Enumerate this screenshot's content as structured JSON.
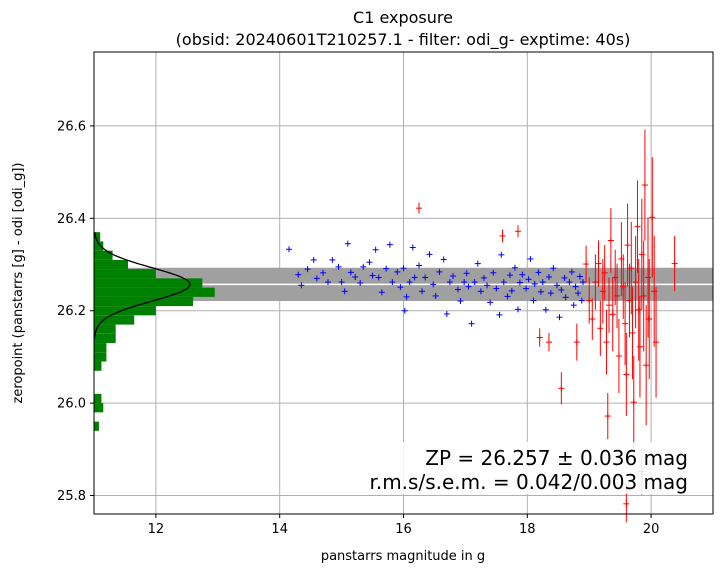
{
  "chart_data": {
    "type": "scatter",
    "title_line1": "C1 exposure",
    "title_line2": "(obsid: 20240601T210257.1 - filter: odi_g- exptime: 40s)",
    "xlabel": "panstarrs magnitude in g",
    "ylabel": "zeropoint (panstarrs [g] - odi [odi_g])",
    "xlim": [
      11.0,
      21.0
    ],
    "ylim": [
      25.76,
      26.76
    ],
    "xticks": [
      12,
      14,
      16,
      18,
      20
    ],
    "yticks": [
      25.8,
      26.0,
      26.2,
      26.4,
      26.6
    ],
    "xtick_labels": [
      "12",
      "14",
      "16",
      "18",
      "20"
    ],
    "ytick_labels": [
      "25.8",
      "26.0",
      "26.2",
      "26.4",
      "26.6"
    ],
    "grid": true,
    "zeropoint": 26.257,
    "zp_band": [
      26.221,
      26.293
    ],
    "annotation_line1": "ZP = 26.257 ± 0.036 mag",
    "annotation_line2": "r.m.s/s.e.m. = 0.042/0.003 mag",
    "colors": {
      "good": "#0000ff",
      "rejected": "#ff0000",
      "band": "#a0a0a0",
      "zp_line": "#ffffff",
      "hist": "#008000",
      "gauss": "#000000",
      "grid": "#b0b0b0"
    },
    "series": [
      {
        "marker": "+",
        "color": "#0000ff",
        "points": [
          [
            14.15,
            26.333
          ],
          [
            14.3,
            26.278
          ],
          [
            14.35,
            26.255
          ],
          [
            14.45,
            26.29
          ],
          [
            14.55,
            26.31
          ],
          [
            14.6,
            26.27
          ],
          [
            14.7,
            26.282
          ],
          [
            14.78,
            26.262
          ],
          [
            14.85,
            26.31
          ],
          [
            14.95,
            26.295
          ],
          [
            15.0,
            26.262
          ],
          [
            15.05,
            26.242
          ],
          [
            15.1,
            26.345
          ],
          [
            15.15,
            26.283
          ],
          [
            15.22,
            26.273
          ],
          [
            15.3,
            26.26
          ],
          [
            15.35,
            26.295
          ],
          [
            15.45,
            26.305
          ],
          [
            15.5,
            26.276
          ],
          [
            15.55,
            26.332
          ],
          [
            15.6,
            26.272
          ],
          [
            15.65,
            26.24
          ],
          [
            15.72,
            26.291
          ],
          [
            15.78,
            26.343
          ],
          [
            15.82,
            26.262
          ],
          [
            15.9,
            26.284
          ],
          [
            15.95,
            26.251
          ],
          [
            16.0,
            26.292
          ],
          [
            16.02,
            26.2
          ],
          [
            16.05,
            26.23
          ],
          [
            16.1,
            26.262
          ],
          [
            16.15,
            26.337
          ],
          [
            16.18,
            26.272
          ],
          [
            16.25,
            26.298
          ],
          [
            16.3,
            26.242
          ],
          [
            16.35,
            26.272
          ],
          [
            16.42,
            26.322
          ],
          [
            16.48,
            26.257
          ],
          [
            16.52,
            26.232
          ],
          [
            16.58,
            26.284
          ],
          [
            16.65,
            26.311
          ],
          [
            16.7,
            26.193
          ],
          [
            16.75,
            26.262
          ],
          [
            16.8,
            26.275
          ],
          [
            16.88,
            26.246
          ],
          [
            16.92,
            26.221
          ],
          [
            16.98,
            26.262
          ],
          [
            17.02,
            26.281
          ],
          [
            17.05,
            26.252
          ],
          [
            17.1,
            26.172
          ],
          [
            17.15,
            26.262
          ],
          [
            17.2,
            26.302
          ],
          [
            17.25,
            26.242
          ],
          [
            17.3,
            26.271
          ],
          [
            17.35,
            26.255
          ],
          [
            17.4,
            26.218
          ],
          [
            17.45,
            26.282
          ],
          [
            17.5,
            26.248
          ],
          [
            17.55,
            26.191
          ],
          [
            17.58,
            26.321
          ],
          [
            17.62,
            26.262
          ],
          [
            17.68,
            26.231
          ],
          [
            17.72,
            26.277
          ],
          [
            17.75,
            26.243
          ],
          [
            17.8,
            26.293
          ],
          [
            17.85,
            26.203
          ],
          [
            17.88,
            26.261
          ],
          [
            17.92,
            26.278
          ],
          [
            17.98,
            26.248
          ],
          [
            18.02,
            26.268
          ],
          [
            18.05,
            26.312
          ],
          [
            18.1,
            26.222
          ],
          [
            18.12,
            26.258
          ],
          [
            18.18,
            26.283
          ],
          [
            18.22,
            26.241
          ],
          [
            18.25,
            26.262
          ],
          [
            18.3,
            26.202
          ],
          [
            18.35,
            26.273
          ],
          [
            18.38,
            26.238
          ],
          [
            18.42,
            26.292
          ],
          [
            18.48,
            26.255
          ],
          [
            18.52,
            26.186
          ],
          [
            18.55,
            26.245
          ],
          [
            18.6,
            26.271
          ],
          [
            18.62,
            26.229
          ],
          [
            18.68,
            26.262
          ],
          [
            18.72,
            26.284
          ],
          [
            18.75,
            26.212
          ],
          [
            18.78,
            26.252
          ],
          [
            18.82,
            26.238
          ],
          [
            18.85,
            26.274
          ],
          [
            18.88,
            26.222
          ],
          [
            18.9,
            26.262
          ]
        ]
      },
      {
        "marker": "+",
        "color": "#ff0000",
        "points": [
          [
            16.25,
            26.422,
            0.012
          ],
          [
            17.6,
            26.362,
            0.014
          ],
          [
            17.85,
            26.372,
            0.013
          ],
          [
            18.2,
            26.142,
            0.02
          ],
          [
            18.35,
            26.132,
            0.02
          ],
          [
            18.55,
            26.032,
            0.035
          ],
          [
            18.95,
            26.301,
            0.04
          ],
          [
            19.0,
            26.222,
            0.05
          ],
          [
            19.05,
            26.182,
            0.045
          ],
          [
            19.1,
            26.262,
            0.06
          ],
          [
            19.15,
            26.302,
            0.05
          ],
          [
            19.18,
            26.162,
            0.06
          ],
          [
            19.22,
            26.242,
            0.07
          ],
          [
            19.25,
            26.282,
            0.06
          ],
          [
            19.28,
            26.132,
            0.07
          ],
          [
            19.32,
            26.212,
            0.06
          ],
          [
            19.35,
            26.352,
            0.07
          ],
          [
            19.38,
            26.192,
            0.08
          ],
          [
            19.42,
            26.272,
            0.06
          ],
          [
            19.45,
            26.232,
            0.07
          ],
          [
            19.48,
            26.102,
            0.08
          ],
          [
            19.52,
            26.312,
            0.08
          ],
          [
            19.55,
            26.252,
            0.07
          ],
          [
            19.58,
            26.172,
            0.09
          ],
          [
            19.6,
            26.062,
            0.09
          ],
          [
            19.62,
            26.342,
            0.09
          ],
          [
            19.65,
            26.222,
            0.08
          ],
          [
            19.68,
            26.292,
            0.1
          ],
          [
            19.7,
            26.152,
            0.1
          ],
          [
            19.72,
            26.002,
            0.1
          ],
          [
            19.75,
            26.262,
            0.1
          ],
          [
            19.78,
            26.382,
            0.1
          ],
          [
            19.8,
            26.202,
            0.11
          ],
          [
            19.82,
            26.122,
            0.11
          ],
          [
            19.85,
            26.322,
            0.12
          ],
          [
            19.88,
            26.232,
            0.12
          ],
          [
            19.9,
            26.472,
            0.12
          ],
          [
            19.92,
            26.082,
            0.13
          ],
          [
            19.95,
            26.272,
            0.13
          ],
          [
            19.97,
            26.182,
            0.13
          ],
          [
            20.02,
            26.402,
            0.13
          ],
          [
            20.05,
            26.242,
            0.12
          ],
          [
            20.08,
            26.132,
            0.12
          ],
          [
            20.38,
            26.302,
            0.06
          ],
          [
            19.6,
            25.782,
            0.04
          ],
          [
            19.85,
            25.852,
            0.05
          ],
          [
            19.3,
            25.972,
            0.05
          ],
          [
            18.8,
            26.132,
            0.04
          ]
        ]
      }
    ],
    "histogram": [
      [
        25.95,
        0.08
      ],
      [
        25.99,
        0.15
      ],
      [
        26.01,
        0.12
      ],
      [
        26.08,
        0.12
      ],
      [
        26.1,
        0.2
      ],
      [
        26.12,
        0.2
      ],
      [
        26.14,
        0.35
      ],
      [
        26.16,
        0.35
      ],
      [
        26.18,
        0.65
      ],
      [
        26.2,
        1.0
      ],
      [
        26.22,
        1.6
      ],
      [
        26.24,
        1.95
      ],
      [
        26.26,
        1.75
      ],
      [
        26.28,
        1.0
      ],
      [
        26.3,
        0.55
      ],
      [
        26.32,
        0.3
      ],
      [
        26.34,
        0.15
      ],
      [
        26.36,
        0.1
      ]
    ]
  }
}
